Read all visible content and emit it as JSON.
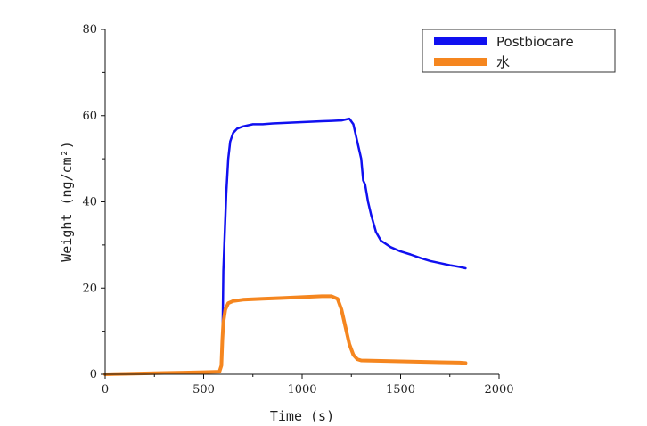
{
  "chart_data": {
    "type": "line",
    "xlabel": "Time (s)",
    "ylabel": "Weight (ng/cm²)",
    "xlim": [
      0,
      2000
    ],
    "ylim": [
      0,
      80
    ],
    "xticks": [
      0,
      500,
      1000,
      1500,
      2000
    ],
    "yticks": [
      0,
      20,
      40,
      60,
      80
    ],
    "grid": false,
    "legend_position": "top-right",
    "series": [
      {
        "name": "Postbiocare",
        "color": "#1010f0",
        "points": [
          [
            0,
            0
          ],
          [
            100,
            0.1
          ],
          [
            200,
            0.2
          ],
          [
            300,
            0.3
          ],
          [
            400,
            0.4
          ],
          [
            500,
            0.5
          ],
          [
            580,
            0.6
          ],
          [
            592,
            2
          ],
          [
            597,
            12
          ],
          [
            600,
            24
          ],
          [
            605,
            30
          ],
          [
            615,
            42
          ],
          [
            625,
            50
          ],
          [
            635,
            54
          ],
          [
            650,
            56
          ],
          [
            670,
            57
          ],
          [
            700,
            57.5
          ],
          [
            750,
            58
          ],
          [
            800,
            58
          ],
          [
            850,
            58.2
          ],
          [
            900,
            58.3
          ],
          [
            950,
            58.4
          ],
          [
            1000,
            58.5
          ],
          [
            1050,
            58.6
          ],
          [
            1100,
            58.7
          ],
          [
            1150,
            58.8
          ],
          [
            1200,
            58.9
          ],
          [
            1240,
            59.3
          ],
          [
            1260,
            58
          ],
          [
            1280,
            54
          ],
          [
            1300,
            50
          ],
          [
            1310,
            45
          ],
          [
            1320,
            44
          ],
          [
            1335,
            40
          ],
          [
            1350,
            37
          ],
          [
            1375,
            33
          ],
          [
            1400,
            31
          ],
          [
            1450,
            29.5
          ],
          [
            1500,
            28.5
          ],
          [
            1550,
            27.8
          ],
          [
            1600,
            27
          ],
          [
            1650,
            26.3
          ],
          [
            1700,
            25.8
          ],
          [
            1750,
            25.3
          ],
          [
            1800,
            24.9
          ],
          [
            1830,
            24.6
          ]
        ]
      },
      {
        "name": "水",
        "color": "#f5861f",
        "points": [
          [
            0,
            0
          ],
          [
            100,
            0.1
          ],
          [
            200,
            0.2
          ],
          [
            300,
            0.3
          ],
          [
            400,
            0.4
          ],
          [
            500,
            0.5
          ],
          [
            580,
            0.6
          ],
          [
            590,
            2
          ],
          [
            595,
            8
          ],
          [
            600,
            12
          ],
          [
            610,
            15
          ],
          [
            625,
            16.5
          ],
          [
            650,
            17
          ],
          [
            700,
            17.3
          ],
          [
            800,
            17.5
          ],
          [
            900,
            17.7
          ],
          [
            1000,
            17.9
          ],
          [
            1050,
            18
          ],
          [
            1100,
            18.1
          ],
          [
            1150,
            18.1
          ],
          [
            1180,
            17.5
          ],
          [
            1200,
            15
          ],
          [
            1220,
            11
          ],
          [
            1240,
            7
          ],
          [
            1260,
            4.5
          ],
          [
            1280,
            3.5
          ],
          [
            1300,
            3.2
          ],
          [
            1400,
            3.1
          ],
          [
            1500,
            3
          ],
          [
            1600,
            2.9
          ],
          [
            1700,
            2.8
          ],
          [
            1800,
            2.7
          ],
          [
            1830,
            2.6
          ]
        ]
      }
    ]
  }
}
